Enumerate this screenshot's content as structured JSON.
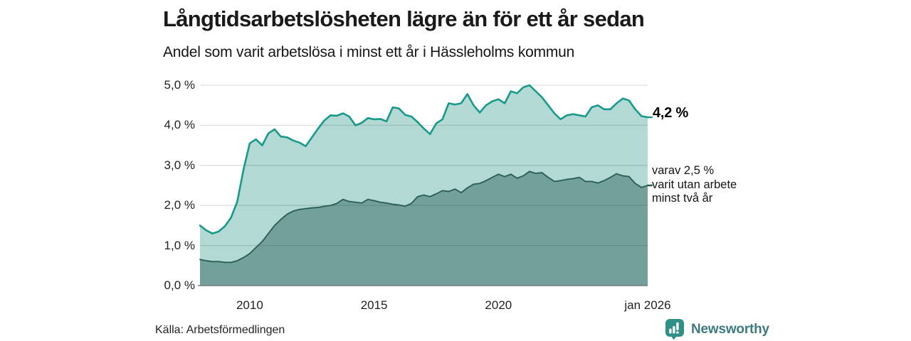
{
  "header": {
    "title": "Långtidsarbetslösheten lägre än för ett år sedan",
    "subtitle": "Andel som varit arbetslösa i minst ett år i Hässleholms kommun"
  },
  "footer": {
    "source": "Källa: Arbetsförmedlingen",
    "brand": "Newsworthy"
  },
  "annotations": {
    "end_value_total": "4,2 %",
    "end_value_two_year_lines": [
      "varav 2,5 %",
      "varit utan arbete",
      "minst två år"
    ]
  },
  "colors": {
    "line_total": "#189a8b",
    "fill_total": "#b2d9d3",
    "line_two_year": "#2d5f58",
    "fill_two_year": "#71a19a",
    "gridline": "rgba(45,45,45,0.16)",
    "axis_line": "#7a7a7a",
    "brand_teal": "#2f9088"
  },
  "chart_data": {
    "type": "area",
    "title": "Långtidsarbetslösheten lägre än för ett år sedan",
    "subtitle": "Andel som varit arbetslösa i minst ett år i Hässleholms kommun",
    "grid": true,
    "x_start": 2008.0,
    "x_step": 0.25,
    "x_axis": {
      "min": 2008.0,
      "max": 2026.0,
      "ticks": [
        {
          "v": 2010,
          "label": "2010"
        },
        {
          "v": 2015,
          "label": "2015"
        },
        {
          "v": 2020,
          "label": "2020"
        },
        {
          "v": 2026,
          "label": "jan 2026"
        }
      ]
    },
    "y_axis": {
      "min": 0,
      "max": 5,
      "unit": "%",
      "ticks": [
        {
          "v": 0,
          "label": "0,0 %"
        },
        {
          "v": 1,
          "label": "1,0 %"
        },
        {
          "v": 2,
          "label": "2,0 %"
        },
        {
          "v": 3,
          "label": "3,0 %"
        },
        {
          "v": 4,
          "label": "4,0 %"
        },
        {
          "v": 5,
          "label": "5,0 %"
        }
      ]
    },
    "series": [
      {
        "name": "Andel som varit arbetslösa i minst ett år",
        "end_label": "4,2 %",
        "values": [
          1.5,
          1.38,
          1.3,
          1.35,
          1.48,
          1.7,
          2.1,
          2.9,
          3.55,
          3.65,
          3.5,
          3.8,
          3.9,
          3.72,
          3.7,
          3.62,
          3.57,
          3.48,
          3.7,
          3.92,
          4.12,
          4.25,
          4.24,
          4.3,
          4.22,
          4.0,
          4.06,
          4.18,
          4.15,
          4.16,
          4.1,
          4.45,
          4.42,
          4.26,
          4.22,
          4.08,
          3.92,
          3.78,
          4.05,
          4.15,
          4.55,
          4.52,
          4.55,
          4.78,
          4.5,
          4.32,
          4.5,
          4.6,
          4.65,
          4.55,
          4.85,
          4.8,
          4.95,
          5.0,
          4.85,
          4.7,
          4.5,
          4.3,
          4.15,
          4.25,
          4.28,
          4.25,
          4.22,
          4.45,
          4.5,
          4.4,
          4.4,
          4.55,
          4.67,
          4.62,
          4.4,
          4.23,
          4.2
        ]
      },
      {
        "name": "varav utan arbete minst två år",
        "end_label": "varav 2,5 % varit utan arbete minst två år",
        "values": [
          0.65,
          0.62,
          0.6,
          0.6,
          0.58,
          0.58,
          0.62,
          0.7,
          0.8,
          0.95,
          1.1,
          1.3,
          1.5,
          1.65,
          1.78,
          1.86,
          1.9,
          1.92,
          1.94,
          1.95,
          1.98,
          2.0,
          2.05,
          2.15,
          2.1,
          2.08,
          2.06,
          2.15,
          2.12,
          2.08,
          2.06,
          2.03,
          2.01,
          1.98,
          2.05,
          2.22,
          2.26,
          2.22,
          2.29,
          2.37,
          2.35,
          2.41,
          2.32,
          2.44,
          2.53,
          2.55,
          2.62,
          2.7,
          2.78,
          2.72,
          2.78,
          2.68,
          2.74,
          2.85,
          2.8,
          2.82,
          2.7,
          2.6,
          2.62,
          2.65,
          2.67,
          2.7,
          2.6,
          2.6,
          2.56,
          2.62,
          2.7,
          2.79,
          2.74,
          2.72,
          2.55,
          2.45,
          2.5
        ]
      }
    ]
  }
}
